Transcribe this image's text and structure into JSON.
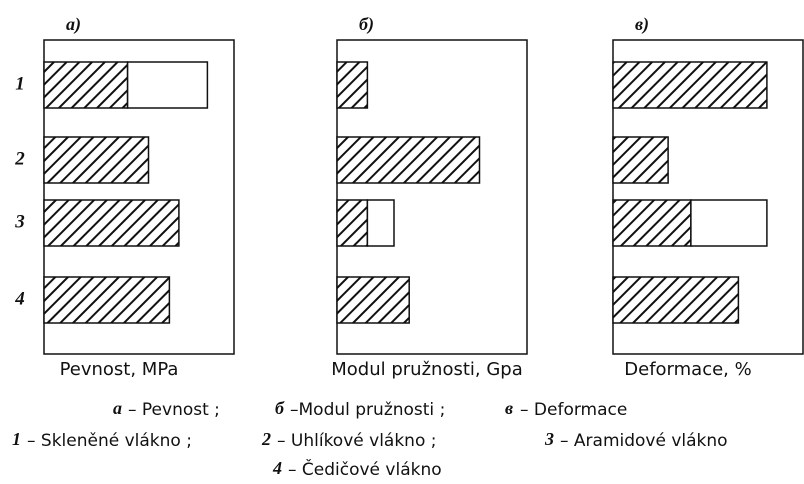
{
  "chart_data": [
    {
      "type": "bar",
      "panel": "а)",
      "categories": [
        "1",
        "2",
        "3",
        "4"
      ],
      "values": [
        44,
        55,
        71,
        66
      ],
      "range_values": [
        42,
        null,
        null,
        null
      ],
      "xlim": [
        0,
        100
      ],
      "xlabel": "Pevnost, MPa"
    },
    {
      "type": "bar",
      "panel": "б)",
      "values": [
        16,
        75,
        16,
        38
      ],
      "range_values": [
        null,
        null,
        14,
        null
      ],
      "xlim": [
        0,
        100
      ],
      "xlabel": "Modul pružnosti, Gpa"
    },
    {
      "type": "bar",
      "panel": "в)",
      "values": [
        81,
        29,
        41,
        66
      ],
      "range_values": [
        null,
        null,
        40,
        null
      ],
      "xlim": [
        0,
        100
      ],
      "xlabel": "Deformace, %"
    }
  ],
  "legend": [
    [
      {
        "key": "а",
        "text": "– Pevnost ;"
      },
      {
        "key": "б",
        "text": "–Modul pružnosti ;"
      },
      {
        "key": "в",
        "text": "– Deformace"
      }
    ],
    [
      {
        "key": "1",
        "text": "– Skleněné vlákno ;"
      },
      {
        "key": "2",
        "text": "– Uhlíkové vlákno ;"
      },
      {
        "key": "3",
        "text": "– Aramidové vlákno"
      }
    ],
    [
      {
        "key": "4",
        "text": "– Čedičové vlákno"
      }
    ]
  ]
}
